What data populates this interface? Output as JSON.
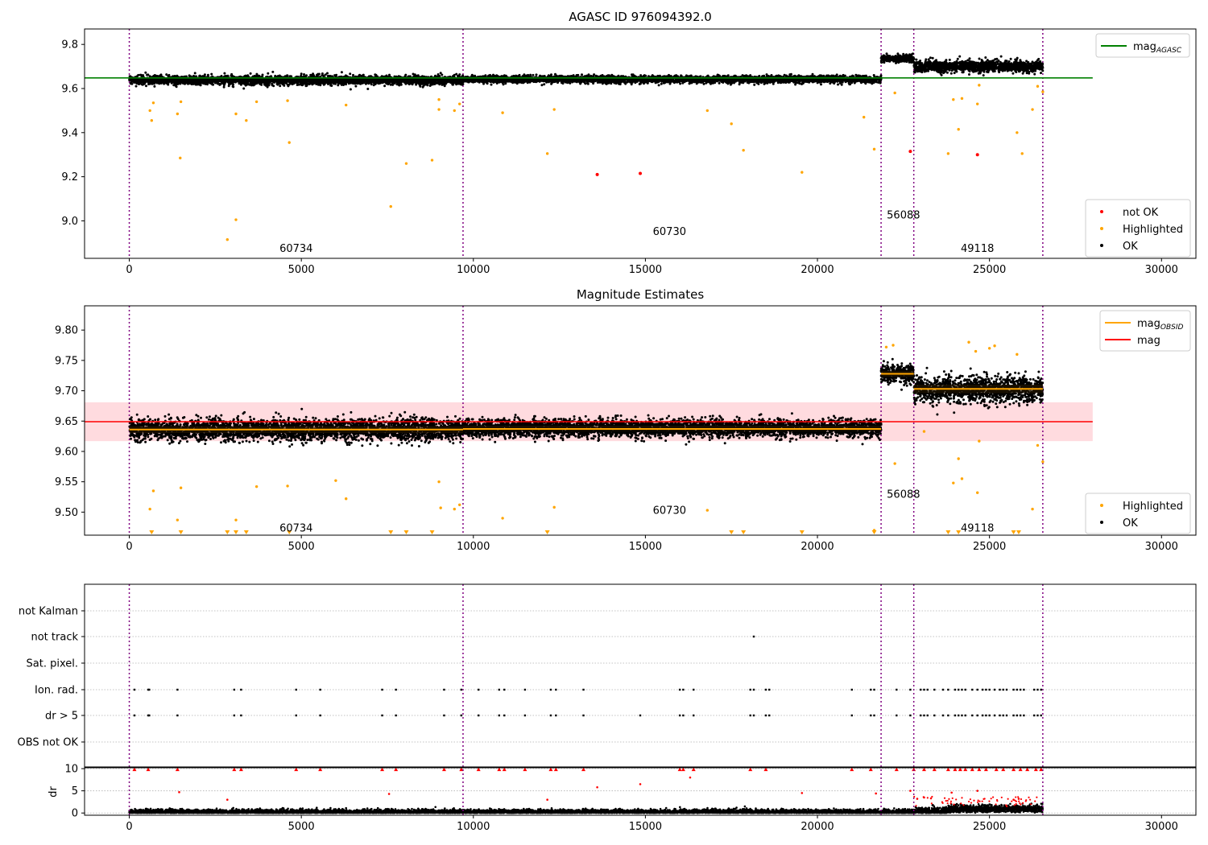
{
  "chart_data": [
    {
      "type": "scatter",
      "title": "AGASC ID 976094392.0",
      "xlim": [
        -1300,
        31000
      ],
      "ylim": [
        8.83,
        9.87
      ],
      "x_ticks": [
        0,
        5000,
        10000,
        15000,
        20000,
        25000,
        30000
      ],
      "x_tick_labels": [
        "0",
        "5000",
        "10000",
        "15000",
        "20000",
        "25000",
        "30000"
      ],
      "y_ticks": [
        9.0,
        9.2,
        9.4,
        9.6,
        9.8
      ],
      "y_tick_labels": [
        "9.0",
        "9.2",
        "9.4",
        "9.6",
        "9.8"
      ],
      "legend_top": {
        "placement": "top-right",
        "entries": [
          {
            "name": "mag",
            "sub": "AGASC",
            "color": "#008000",
            "kind": "line"
          }
        ]
      },
      "legend_bottom": {
        "placement": "bottom-right",
        "entries": [
          {
            "name": "not OK",
            "color": "#ff0000",
            "kind": "dot"
          },
          {
            "name": "Highlighted",
            "color": "#ffa500",
            "kind": "dot"
          },
          {
            "name": "OK",
            "color": "#000000",
            "kind": "dot"
          }
        ]
      },
      "reference_line": {
        "y": 9.648,
        "x_range": [
          -1300,
          28000
        ],
        "color": "#008000"
      },
      "segments": [
        {
          "x_range": [
            0,
            9700
          ],
          "center": 9.638,
          "spread": 0.018
        },
        {
          "x_range": [
            9700,
            21850
          ],
          "center": 9.642,
          "spread": 0.014
        },
        {
          "x_range": [
            21850,
            22800
          ],
          "center": 9.735,
          "spread": 0.015
        },
        {
          "x_range": [
            22800,
            26550
          ],
          "center": 9.7,
          "spread": 0.022
        }
      ],
      "obsid_boundaries": [
        0,
        9700,
        21850,
        22800,
        26550
      ],
      "obsid_labels": [
        {
          "text": "60734",
          "x": 4850,
          "y": 8.86
        },
        {
          "text": "60730",
          "x": 15700,
          "y": 8.935
        },
        {
          "text": "56088",
          "x": 22500,
          "y": 9.01
        },
        {
          "text": "49118",
          "x": 24650,
          "y": 8.86
        }
      ],
      "highlighted_points": [
        {
          "x": 700,
          "y": 9.535
        },
        {
          "x": 600,
          "y": 9.5
        },
        {
          "x": 650,
          "y": 9.455
        },
        {
          "x": 1400,
          "y": 9.485
        },
        {
          "x": 1500,
          "y": 9.54
        },
        {
          "x": 1480,
          "y": 9.285
        },
        {
          "x": 2850,
          "y": 8.915
        },
        {
          "x": 3100,
          "y": 9.005
        },
        {
          "x": 3100,
          "y": 9.485
        },
        {
          "x": 3400,
          "y": 9.455
        },
        {
          "x": 3700,
          "y": 9.54
        },
        {
          "x": 4650,
          "y": 9.355
        },
        {
          "x": 4600,
          "y": 9.545
        },
        {
          "x": 6300,
          "y": 9.525
        },
        {
          "x": 7600,
          "y": 9.065
        },
        {
          "x": 8050,
          "y": 9.26
        },
        {
          "x": 8800,
          "y": 9.275
        },
        {
          "x": 9000,
          "y": 9.505
        },
        {
          "x": 9000,
          "y": 9.55
        },
        {
          "x": 9450,
          "y": 9.5
        },
        {
          "x": 9600,
          "y": 9.53
        },
        {
          "x": 10850,
          "y": 9.49
        },
        {
          "x": 12150,
          "y": 9.305
        },
        {
          "x": 12350,
          "y": 9.505
        },
        {
          "x": 16800,
          "y": 9.5
        },
        {
          "x": 17500,
          "y": 9.44
        },
        {
          "x": 17850,
          "y": 9.32
        },
        {
          "x": 19550,
          "y": 9.22
        },
        {
          "x": 21350,
          "y": 9.47
        },
        {
          "x": 21650,
          "y": 9.325
        },
        {
          "x": 22250,
          "y": 9.58
        },
        {
          "x": 23800,
          "y": 9.305
        },
        {
          "x": 23950,
          "y": 9.55
        },
        {
          "x": 24100,
          "y": 9.415
        },
        {
          "x": 24200,
          "y": 9.555
        },
        {
          "x": 24650,
          "y": 9.53
        },
        {
          "x": 24700,
          "y": 9.615
        },
        {
          "x": 25800,
          "y": 9.4
        },
        {
          "x": 25950,
          "y": 9.305
        },
        {
          "x": 26250,
          "y": 9.505
        },
        {
          "x": 26400,
          "y": 9.61
        },
        {
          "x": 26550,
          "y": 9.585
        }
      ],
      "not_ok_points": [
        {
          "x": 13600,
          "y": 9.21
        },
        {
          "x": 14850,
          "y": 9.215
        },
        {
          "x": 22700,
          "y": 9.315
        },
        {
          "x": 24650,
          "y": 9.3
        }
      ]
    },
    {
      "type": "scatter",
      "title": "Magnitude Estimates",
      "xlim": [
        -1300,
        31000
      ],
      "ylim": [
        9.462,
        9.84
      ],
      "x_ticks": [
        0,
        5000,
        10000,
        15000,
        20000,
        25000,
        30000
      ],
      "x_tick_labels": [
        "0",
        "5000",
        "10000",
        "15000",
        "20000",
        "25000",
        "30000"
      ],
      "y_ticks": [
        9.5,
        9.55,
        9.6,
        9.65,
        9.7,
        9.75,
        9.8
      ],
      "y_tick_labels": [
        "9.50",
        "9.55",
        "9.60",
        "9.65",
        "9.70",
        "9.75",
        "9.80"
      ],
      "legend_top": {
        "placement": "top-right",
        "entries": [
          {
            "name": "mag",
            "sub": "OBSID",
            "color": "#ffa500",
            "kind": "line"
          },
          {
            "name": "mag",
            "sub": "",
            "color": "#ff0000",
            "kind": "line"
          }
        ]
      },
      "legend_bottom": {
        "placement": "bottom-right",
        "entries": [
          {
            "name": "Highlighted",
            "color": "#ffa500",
            "kind": "dot"
          },
          {
            "name": "OK",
            "color": "#000000",
            "kind": "dot"
          }
        ]
      },
      "reference_line": {
        "y": 9.649,
        "x_range": [
          -1300,
          28000
        ],
        "color": "#ff0000"
      },
      "reference_band": {
        "y_range": [
          9.617,
          9.681
        ],
        "x_range": [
          -1300,
          28000
        ],
        "color": "#ffb0b8"
      },
      "obsid_mags": [
        {
          "x_range": [
            0,
            9700
          ],
          "y": 9.636
        },
        {
          "x_range": [
            9700,
            21850
          ],
          "y": 9.637
        },
        {
          "x_range": [
            21850,
            22800
          ],
          "y": 9.728
        },
        {
          "x_range": [
            22800,
            26550
          ],
          "y": 9.703
        }
      ],
      "segments": [
        {
          "x_range": [
            0,
            9700
          ],
          "center": 9.636,
          "spread": 0.016
        },
        {
          "x_range": [
            9700,
            21850
          ],
          "center": 9.638,
          "spread": 0.013
        },
        {
          "x_range": [
            21850,
            22800
          ],
          "center": 9.728,
          "spread": 0.014
        },
        {
          "x_range": [
            22800,
            26550
          ],
          "center": 9.703,
          "spread": 0.02
        }
      ],
      "obsid_boundaries": [
        0,
        9700,
        21850,
        22800,
        26550
      ],
      "obsid_labels": [
        {
          "text": "60734",
          "x": 4850,
          "y": 9.468
        },
        {
          "text": "60730",
          "x": 15700,
          "y": 9.497
        },
        {
          "text": "56088",
          "x": 22500,
          "y": 9.524
        },
        {
          "text": "49118",
          "x": 24650,
          "y": 9.468
        }
      ],
      "highlighted_points": [
        {
          "x": 600,
          "y": 9.505
        },
        {
          "x": 700,
          "y": 9.535
        },
        {
          "x": 1400,
          "y": 9.487
        },
        {
          "x": 1500,
          "y": 9.54
        },
        {
          "x": 3100,
          "y": 9.487
        },
        {
          "x": 3700,
          "y": 9.542
        },
        {
          "x": 4600,
          "y": 9.543
        },
        {
          "x": 6000,
          "y": 9.552
        },
        {
          "x": 6300,
          "y": 9.522
        },
        {
          "x": 9000,
          "y": 9.55
        },
        {
          "x": 9050,
          "y": 9.507
        },
        {
          "x": 9450,
          "y": 9.505
        },
        {
          "x": 9600,
          "y": 9.512
        },
        {
          "x": 10850,
          "y": 9.49
        },
        {
          "x": 12350,
          "y": 9.508
        },
        {
          "x": 16800,
          "y": 9.503
        },
        {
          "x": 21650,
          "y": 9.47
        },
        {
          "x": 22250,
          "y": 9.58
        },
        {
          "x": 23100,
          "y": 9.633
        },
        {
          "x": 23950,
          "y": 9.548
        },
        {
          "x": 24100,
          "y": 9.588
        },
        {
          "x": 24200,
          "y": 9.555
        },
        {
          "x": 24650,
          "y": 9.532
        },
        {
          "x": 24700,
          "y": 9.617
        },
        {
          "x": 26250,
          "y": 9.505
        },
        {
          "x": 26400,
          "y": 9.61
        },
        {
          "x": 26550,
          "y": 9.583
        },
        {
          "x": 24400,
          "y": 9.78
        },
        {
          "x": 24600,
          "y": 9.765
        },
        {
          "x": 25000,
          "y": 9.77
        },
        {
          "x": 25150,
          "y": 9.774
        },
        {
          "x": 25800,
          "y": 9.76
        },
        {
          "x": 22000,
          "y": 9.772
        },
        {
          "x": 22200,
          "y": 9.775
        }
      ],
      "below_range_markers": [
        650,
        1500,
        2850,
        3100,
        3400,
        4650,
        7600,
        8050,
        8800,
        12150,
        17500,
        17850,
        19550,
        21650,
        23800,
        24100,
        25700,
        25850
      ]
    },
    {
      "type": "scatter",
      "title": "",
      "xlim": [
        -1300,
        31000
      ],
      "x_ticks": [
        0,
        5000,
        10000,
        15000,
        20000,
        25000,
        30000
      ],
      "x_tick_labels": [
        "0",
        "5000",
        "10000",
        "15000",
        "20000",
        "25000",
        "30000"
      ],
      "flag_rows": [
        "not Kalman",
        "not track",
        "Sat. pixel.",
        "Ion. rad.",
        "dr > 5",
        "OBS not OK"
      ],
      "flag_points": {
        "not track": [
          18150
        ],
        "Ion. rad.": [
          150,
          550,
          580,
          1400,
          3050,
          3250,
          4850,
          5550,
          7350,
          7750,
          9150,
          9650,
          10150,
          10750,
          10900,
          11500,
          12250,
          12400,
          13200,
          16000,
          16100,
          16400,
          18050,
          18150,
          18500,
          18600,
          21000,
          21550,
          21650,
          22300,
          22700,
          23000,
          23100,
          23200,
          23400,
          23650,
          23800,
          24000,
          24100,
          24200,
          24300,
          24500,
          24650,
          24800,
          24900,
          25000,
          25150,
          25300,
          25400,
          25500,
          25700,
          25800,
          25900,
          26000,
          26300,
          26400,
          26500
        ],
        "dr > 5": [
          150,
          550,
          580,
          1400,
          3050,
          3250,
          4850,
          5550,
          7350,
          7750,
          9150,
          9650,
          10150,
          10750,
          10900,
          11500,
          12250,
          12400,
          13200,
          14850,
          16000,
          16100,
          16400,
          18050,
          18150,
          18500,
          18600,
          21000,
          21550,
          21650,
          22300,
          22700,
          23000,
          23100,
          23200,
          23400,
          23650,
          23800,
          24000,
          24100,
          24200,
          24300,
          24500,
          24650,
          24800,
          24900,
          25000,
          25150,
          25300,
          25400,
          25500,
          25700,
          25800,
          25900,
          26000,
          26300,
          26400,
          26500
        ]
      },
      "dr": {
        "ylabel": "dr",
        "ylim": [
          -0.5,
          10.2
        ],
        "y_ticks": [
          0,
          5,
          10
        ],
        "y_tick_labels": [
          "0",
          "5",
          "10"
        ],
        "typical_max": 1.3,
        "clipped_markers": [
          150,
          550,
          1400,
          3050,
          3250,
          4850,
          5550,
          7350,
          7750,
          9150,
          9650,
          10150,
          10750,
          10900,
          11500,
          12250,
          12400,
          13200,
          16000,
          16100,
          16400,
          18050,
          18500,
          21000,
          21550,
          22300,
          22800,
          23100,
          23400,
          23800,
          24000,
          24150,
          24300,
          24500,
          24700,
          24900,
          25200,
          25400,
          25700,
          25900,
          26100,
          26350,
          26500
        ],
        "red_points": [
          {
            "x": 1450,
            "y": 4.7
          },
          {
            "x": 2850,
            "y": 3.0
          },
          {
            "x": 7550,
            "y": 4.3
          },
          {
            "x": 12150,
            "y": 3.0
          },
          {
            "x": 13600,
            "y": 5.8
          },
          {
            "x": 14850,
            "y": 6.5
          },
          {
            "x": 16300,
            "y": 8.0
          },
          {
            "x": 19550,
            "y": 4.5
          },
          {
            "x": 21700,
            "y": 4.4
          },
          {
            "x": 22700,
            "y": 5.0
          },
          {
            "x": 22900,
            "y": 3.2
          },
          {
            "x": 23100,
            "y": 3.5
          },
          {
            "x": 23300,
            "y": 3.3
          },
          {
            "x": 23900,
            "y": 4.6
          },
          {
            "x": 24650,
            "y": 5.0
          },
          {
            "x": 25700,
            "y": 3.0
          },
          {
            "x": 25850,
            "y": 3.2
          }
        ]
      },
      "obsid_boundaries": [
        0,
        9700,
        21850,
        22800,
        26550
      ]
    }
  ]
}
